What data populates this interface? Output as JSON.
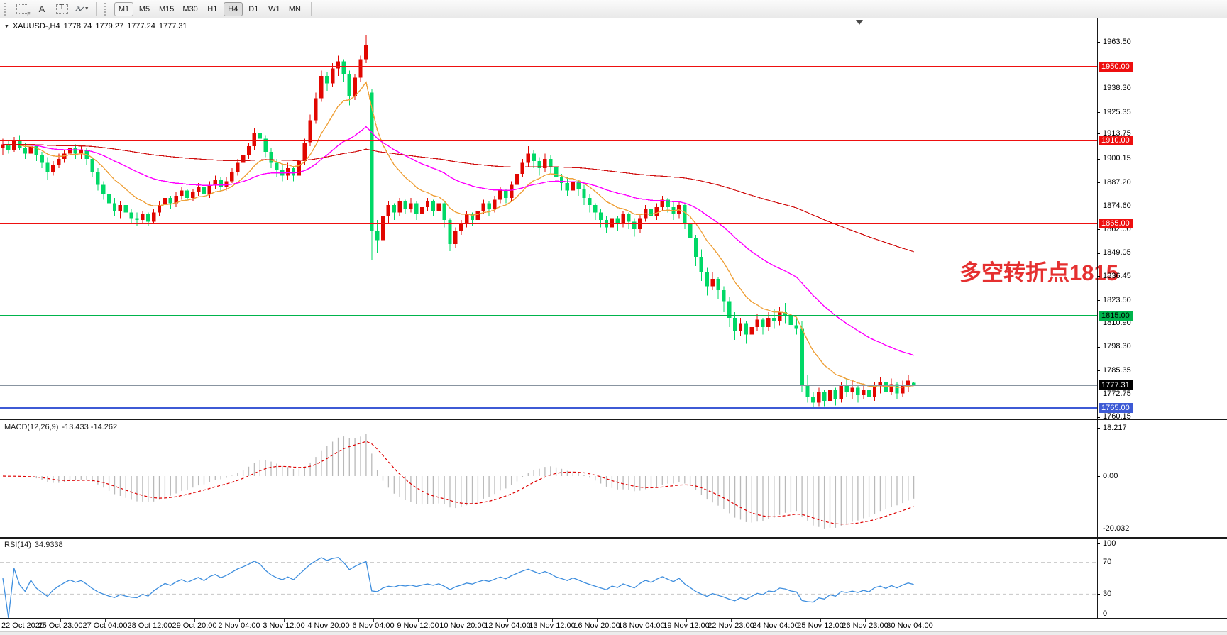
{
  "toolbar": {
    "icons": [
      {
        "name": "grid-f-icon",
        "sub": "F"
      },
      {
        "name": "font-a-icon",
        "glyph": "A"
      },
      {
        "name": "text-box-icon",
        "glyph": "T"
      },
      {
        "name": "arrows-icon",
        "glyph_up": "↗",
        "glyph_down": "↙"
      },
      {
        "name": "dropdown-caret-icon",
        "glyph": "▼"
      }
    ],
    "timeframes": [
      "M1",
      "M5",
      "M15",
      "M30",
      "H1",
      "H4",
      "D1",
      "W1",
      "MN"
    ],
    "active_timeframe": "H4",
    "outlined_timeframe": "M1"
  },
  "symbol_info": {
    "title": "XAUUSD-,H4",
    "open": "1778.74",
    "high": "1779.27",
    "low": "1777.24",
    "close": "1777.31"
  },
  "annotation": {
    "text": "多空转折点1815",
    "color": "#e53030"
  },
  "chart_data": {
    "type": "candlestick",
    "symbol": "XAUUSD",
    "timeframe": "H4",
    "title": "XAUUSD-,H4 1778.74 1779.27 1777.24 1777.31",
    "legend_position": "none",
    "grid": false,
    "colors": {
      "bull": "#e10600",
      "bear": "#00d866",
      "ma_fast": "#efa23c",
      "ma_mid": "#ff00ff",
      "ma_slow": "#d01010",
      "macd_histogram": "#b9b9b9",
      "macd_signal": "#dd0000",
      "rsi_line": "#3e8ede",
      "rsi_level_dash": "#c8c8c8",
      "current_price_line": "#8894a0"
    },
    "y_axis_ticks": [
      "1963.50",
      "1938.30",
      "1925.35",
      "1913.75",
      "1900.15",
      "1887.20",
      "1874.60",
      "1862.00",
      "1849.05",
      "1836.45",
      "1823.50",
      "1810.90",
      "1798.30",
      "1785.35",
      "1772.75",
      "1760.15"
    ],
    "y_axis_tick_values": [
      1963.5,
      1938.3,
      1925.35,
      1913.75,
      1900.15,
      1887.2,
      1874.6,
      1862.0,
      1849.05,
      1836.45,
      1823.5,
      1810.9,
      1798.3,
      1785.35,
      1772.75,
      1760.15
    ],
    "ylim": [
      1759.0,
      1976.0
    ],
    "x_axis_labels": [
      "22 Oct 2020",
      "25 Oct 23:00",
      "27 Oct 04:00",
      "28 Oct 12:00",
      "29 Oct 20:00",
      "2 Nov 04:00",
      "3 Nov 12:00",
      "4 Nov 20:00",
      "6 Nov 04:00",
      "9 Nov 12:00",
      "10 Nov 20:00",
      "12 Nov 04:00",
      "13 Nov 12:00",
      "16 Nov 20:00",
      "18 Nov 04:00",
      "19 Nov 12:00",
      "22 Nov 23:00",
      "24 Nov 04:00",
      "25 Nov 12:00",
      "26 Nov 23:00",
      "30 Nov 04:00"
    ],
    "horizontal_lines": [
      {
        "price": 1950.0,
        "label": "1950.00",
        "color": "#ee0f0f",
        "text": "#ffffff",
        "width": 2
      },
      {
        "price": 1910.0,
        "label": "1910.00",
        "color": "#ee0f0f",
        "text": "#ffffff",
        "width": 2
      },
      {
        "price": 1865.0,
        "label": "1865.00",
        "color": "#ee0f0f",
        "text": "#ffffff",
        "width": 2
      },
      {
        "price": 1815.0,
        "label": "1815.00",
        "color": "#00b44c",
        "text": "#000000",
        "width": 2
      },
      {
        "price": 1765.0,
        "label": "1765.00",
        "color": "#3d5ad5",
        "text": "#ffffff",
        "width": 3
      }
    ],
    "current_price": {
      "value": 1777.31,
      "label": "1777.31",
      "badge_bg": "#000000",
      "badge_text": "#ffffff"
    },
    "candles": [
      [
        1906,
        1911,
        1902,
        1908
      ],
      [
        1908,
        1910,
        1903,
        1905
      ],
      [
        1905,
        1912,
        1904,
        1910
      ],
      [
        1910,
        1913,
        1905,
        1906
      ],
      [
        1906,
        1909,
        1900,
        1903
      ],
      [
        1903,
        1909,
        1901,
        1907
      ],
      [
        1907,
        1908,
        1899,
        1902
      ],
      [
        1902,
        1904,
        1895,
        1898
      ],
      [
        1898,
        1901,
        1889,
        1893
      ],
      [
        1893,
        1899,
        1891,
        1897
      ],
      [
        1897,
        1903,
        1895,
        1900
      ],
      [
        1900,
        1905,
        1898,
        1903
      ],
      [
        1903,
        1908,
        1901,
        1906
      ],
      [
        1906,
        1908,
        1900,
        1903
      ],
      [
        1903,
        1907,
        1900,
        1905
      ],
      [
        1905,
        1906,
        1897,
        1900
      ],
      [
        1900,
        1901,
        1890,
        1893
      ],
      [
        1893,
        1895,
        1883,
        1886
      ],
      [
        1886,
        1888,
        1878,
        1881
      ],
      [
        1881,
        1884,
        1873,
        1876
      ],
      [
        1876,
        1879,
        1869,
        1872
      ],
      [
        1872,
        1877,
        1868,
        1875
      ],
      [
        1875,
        1876,
        1868,
        1871
      ],
      [
        1871,
        1873,
        1865.5,
        1868
      ],
      [
        1868,
        1871,
        1864,
        1867
      ],
      [
        1867,
        1872,
        1865,
        1870
      ],
      [
        1870,
        1871,
        1864,
        1866
      ],
      [
        1866,
        1873,
        1865,
        1871
      ],
      [
        1871,
        1877,
        1869,
        1875
      ],
      [
        1875,
        1881,
        1873,
        1879
      ],
      [
        1879,
        1880,
        1873,
        1876
      ],
      [
        1876,
        1882,
        1874,
        1880
      ],
      [
        1880,
        1885,
        1878,
        1883
      ],
      [
        1883,
        1884,
        1877,
        1879
      ],
      [
        1879,
        1884,
        1877,
        1882
      ],
      [
        1882,
        1887,
        1880,
        1885
      ],
      [
        1885,
        1886,
        1879,
        1881
      ],
      [
        1881,
        1888,
        1879,
        1886
      ],
      [
        1886,
        1891,
        1884,
        1889
      ],
      [
        1889,
        1890,
        1883,
        1885
      ],
      [
        1885,
        1890,
        1883,
        1888
      ],
      [
        1888,
        1895,
        1887,
        1893
      ],
      [
        1893,
        1900,
        1891,
        1898
      ],
      [
        1898,
        1904,
        1896,
        1902
      ],
      [
        1902,
        1909,
        1900,
        1907
      ],
      [
        1907,
        1917,
        1905,
        1914
      ],
      [
        1914,
        1921,
        1908,
        1911
      ],
      [
        1911,
        1913,
        1901,
        1904
      ],
      [
        1904,
        1906,
        1895,
        1898
      ],
      [
        1898,
        1900,
        1890,
        1894
      ],
      [
        1894,
        1897,
        1888,
        1891
      ],
      [
        1891,
        1898,
        1889,
        1895
      ],
      [
        1895,
        1896,
        1888,
        1891
      ],
      [
        1891,
        1901,
        1890,
        1899
      ],
      [
        1899,
        1911,
        1897,
        1909
      ],
      [
        1909,
        1924,
        1907,
        1921
      ],
      [
        1921,
        1936,
        1919,
        1933
      ],
      [
        1933,
        1948,
        1931,
        1945
      ],
      [
        1945,
        1947,
        1937,
        1941
      ],
      [
        1941,
        1952,
        1939,
        1949
      ],
      [
        1949,
        1956,
        1945,
        1953
      ],
      [
        1953,
        1954,
        1942,
        1946
      ],
      [
        1946,
        1948,
        1929,
        1934
      ],
      [
        1934,
        1946,
        1932,
        1944
      ],
      [
        1944,
        1956,
        1942,
        1954
      ],
      [
        1954,
        1967,
        1952,
        1962
      ],
      [
        1936,
        1938,
        1845,
        1861
      ],
      [
        1861,
        1867,
        1849,
        1856
      ],
      [
        1856,
        1871,
        1853,
        1869
      ],
      [
        1869,
        1877,
        1865,
        1875
      ],
      [
        1875,
        1876,
        1867,
        1871
      ],
      [
        1871,
        1879,
        1869,
        1877
      ],
      [
        1877,
        1878,
        1870,
        1873
      ],
      [
        1873,
        1879,
        1871,
        1876
      ],
      [
        1876,
        1877,
        1867,
        1870
      ],
      [
        1870,
        1876,
        1868,
        1874
      ],
      [
        1874,
        1879,
        1872,
        1877
      ],
      [
        1877,
        1878,
        1869,
        1872
      ],
      [
        1872,
        1877,
        1870,
        1876
      ],
      [
        1876,
        1877,
        1863,
        1867
      ],
      [
        1867,
        1868,
        1850,
        1854
      ],
      [
        1854,
        1863,
        1852,
        1861
      ],
      [
        1861,
        1867,
        1859,
        1865
      ],
      [
        1865,
        1872,
        1863,
        1870
      ],
      [
        1870,
        1871,
        1864,
        1867
      ],
      [
        1867,
        1874,
        1865,
        1872
      ],
      [
        1872,
        1878,
        1870,
        1876
      ],
      [
        1876,
        1877,
        1869,
        1873
      ],
      [
        1873,
        1880,
        1871,
        1878
      ],
      [
        1878,
        1885,
        1876,
        1883
      ],
      [
        1883,
        1884,
        1876,
        1879
      ],
      [
        1879,
        1888,
        1877,
        1886
      ],
      [
        1886,
        1894,
        1884,
        1892
      ],
      [
        1892,
        1900,
        1890,
        1898
      ],
      [
        1898,
        1907,
        1896,
        1903
      ],
      [
        1903,
        1905,
        1895,
        1899
      ],
      [
        1899,
        1901,
        1891,
        1895
      ],
      [
        1895,
        1903,
        1893,
        1900
      ],
      [
        1900,
        1902,
        1892,
        1896
      ],
      [
        1896,
        1898,
        1886,
        1890
      ],
      [
        1890,
        1892,
        1883,
        1887
      ],
      [
        1887,
        1890,
        1880,
        1883
      ],
      [
        1883,
        1891,
        1881,
        1888
      ],
      [
        1888,
        1889,
        1880,
        1884
      ],
      [
        1884,
        1886,
        1875,
        1879
      ],
      [
        1879,
        1881,
        1871,
        1875
      ],
      [
        1875,
        1876,
        1867,
        1871
      ],
      [
        1871,
        1873,
        1863,
        1867
      ],
      [
        1867,
        1869,
        1860,
        1863
      ],
      [
        1863,
        1870,
        1861,
        1868
      ],
      [
        1868,
        1869,
        1861,
        1865
      ],
      [
        1865,
        1872,
        1863,
        1870
      ],
      [
        1870,
        1871,
        1862,
        1866
      ],
      [
        1866,
        1868,
        1858,
        1862
      ],
      [
        1862,
        1870,
        1860,
        1868
      ],
      [
        1868,
        1875,
        1866,
        1873
      ],
      [
        1873,
        1874,
        1866,
        1869
      ],
      [
        1869,
        1876,
        1867,
        1874
      ],
      [
        1874,
        1880,
        1872,
        1878
      ],
      [
        1878,
        1879,
        1871,
        1874
      ],
      [
        1874,
        1877,
        1867,
        1870
      ],
      [
        1870,
        1877,
        1868,
        1875
      ],
      [
        1875,
        1876,
        1862,
        1865
      ],
      [
        1865,
        1866,
        1853,
        1857
      ],
      [
        1857,
        1859,
        1842,
        1847
      ],
      [
        1847,
        1851,
        1834,
        1839
      ],
      [
        1839,
        1841,
        1826,
        1831
      ],
      [
        1831,
        1839,
        1829,
        1835
      ],
      [
        1835,
        1836,
        1824,
        1829
      ],
      [
        1829,
        1831,
        1817,
        1823
      ],
      [
        1823,
        1825,
        1809,
        1814
      ],
      [
        1814,
        1817,
        1802,
        1807
      ],
      [
        1807,
        1814,
        1804,
        1811
      ],
      [
        1811,
        1812,
        1800,
        1805
      ],
      [
        1805,
        1812,
        1803,
        1809
      ],
      [
        1809,
        1816,
        1807,
        1813
      ],
      [
        1813,
        1814,
        1805,
        1809
      ],
      [
        1809,
        1817,
        1807,
        1814
      ],
      [
        1814,
        1819,
        1808,
        1812
      ],
      [
        1812,
        1820,
        1810,
        1817
      ],
      [
        1817,
        1822,
        1811,
        1815
      ],
      [
        1815,
        1816,
        1806,
        1810
      ],
      [
        1810,
        1814,
        1805,
        1808
      ],
      [
        1808,
        1812,
        1774,
        1777
      ],
      [
        1777,
        1783,
        1768,
        1771
      ],
      [
        1771,
        1774,
        1765.5,
        1768
      ],
      [
        1768,
        1776,
        1766,
        1774
      ],
      [
        1774,
        1775,
        1766,
        1769
      ],
      [
        1769,
        1777,
        1767,
        1775
      ],
      [
        1775,
        1776,
        1766.5,
        1770
      ],
      [
        1770,
        1779,
        1768,
        1777
      ],
      [
        1777,
        1781,
        1771,
        1774
      ],
      [
        1774,
        1780,
        1770,
        1776
      ],
      [
        1776,
        1777,
        1768,
        1772
      ],
      [
        1772,
        1778,
        1770,
        1775
      ],
      [
        1775,
        1776,
        1767,
        1771
      ],
      [
        1771,
        1779,
        1769,
        1777
      ],
      [
        1777,
        1782,
        1773,
        1779
      ],
      [
        1779,
        1780,
        1771,
        1774
      ],
      [
        1774,
        1781,
        1772,
        1778
      ],
      [
        1778,
        1779,
        1770,
        1773
      ],
      [
        1773,
        1780,
        1771,
        1777
      ],
      [
        1777,
        1783,
        1774,
        1780
      ],
      [
        1778.7,
        1779.3,
        1777.2,
        1777.3
      ]
    ],
    "macd": {
      "name_display": "MACD(12,26,9)",
      "values_display": "-13.433 -14.262",
      "main_value": -13.433,
      "signal_value": -14.262,
      "axis_ticks": [
        "18.217",
        "0.00",
        "-20.032"
      ],
      "axis_tick_values": [
        18.217,
        0.0,
        -20.032
      ]
    },
    "rsi": {
      "name_display": "RSI(14)",
      "value_display": "34.9338",
      "value": 34.9338,
      "axis_ticks": [
        "100",
        "70",
        "30",
        "0"
      ],
      "axis_tick_values": [
        100,
        70,
        30,
        0
      ],
      "levels": [
        70,
        30
      ]
    }
  }
}
